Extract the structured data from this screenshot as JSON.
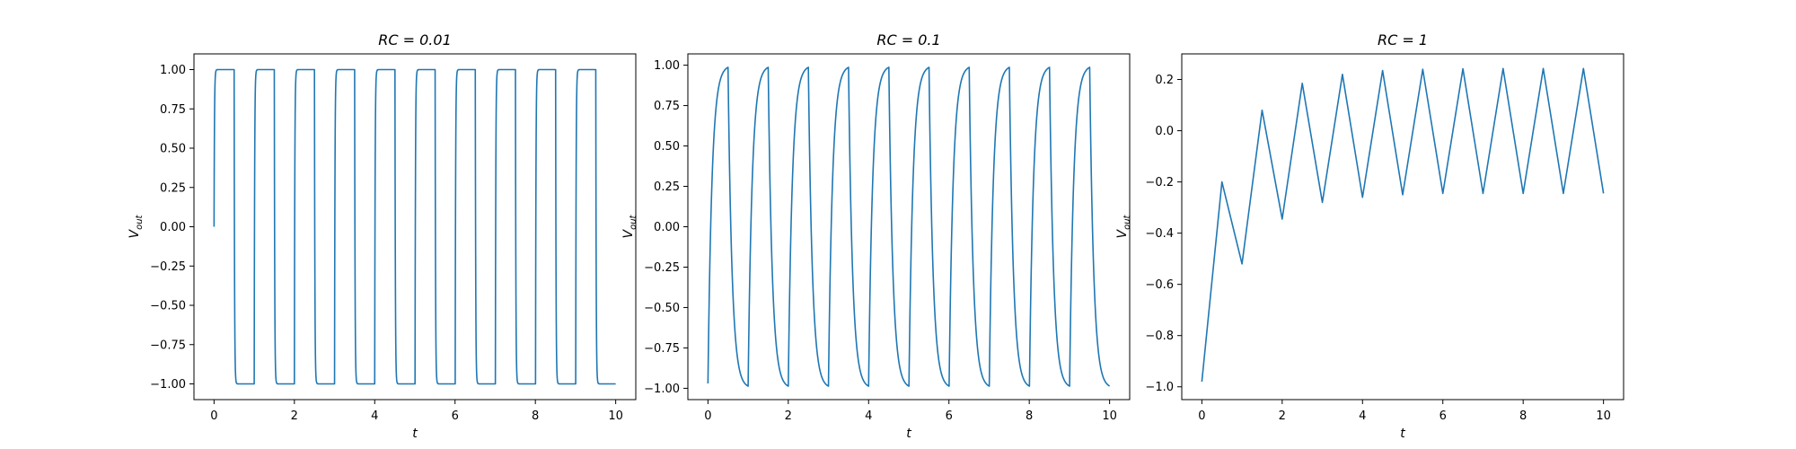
{
  "chart_data": [
    {
      "type": "line",
      "title": "RC = 0.01",
      "xlabel": "t",
      "ylabel": "V_out",
      "xlim": [
        -0.5,
        10.5
      ],
      "ylim": [
        -1.1,
        1.1
      ],
      "xticks": [
        0,
        2,
        4,
        6,
        8,
        10
      ],
      "xtick_labels": [
        "0",
        "2",
        "4",
        "6",
        "8",
        "10"
      ],
      "yticks": [
        -1.0,
        -0.75,
        -0.5,
        -0.25,
        0.0,
        0.25,
        0.5,
        0.75,
        1.0
      ],
      "ytick_labels": [
        "−1.00",
        "−0.75",
        "−0.50",
        "−0.25",
        "0.00",
        "0.25",
        "0.50",
        "0.75",
        "1.00"
      ],
      "grid": false,
      "series": [
        {
          "color": "#1f77b4",
          "model": "RC response to ±1 square wave, period 1, starting at 0",
          "rc": 0.01,
          "v0": 0.0,
          "x_range": [
            0,
            10
          ]
        }
      ]
    },
    {
      "type": "line",
      "title": "RC = 0.1",
      "xlabel": "t",
      "ylabel": "V_out",
      "xlim": [
        -0.5,
        10.5
      ],
      "ylim": [
        -1.07,
        1.07
      ],
      "xticks": [
        0,
        2,
        4,
        6,
        8,
        10
      ],
      "xtick_labels": [
        "0",
        "2",
        "4",
        "6",
        "8",
        "10"
      ],
      "yticks": [
        -1.0,
        -0.75,
        -0.5,
        -0.25,
        0.0,
        0.25,
        0.5,
        0.75,
        1.0
      ],
      "ytick_labels": [
        "−1.00",
        "−0.75",
        "−0.50",
        "−0.25",
        "0.00",
        "0.25",
        "0.50",
        "0.75",
        "1.00"
      ],
      "grid": false,
      "series": [
        {
          "color": "#1f77b4",
          "model": "RC response to ±1 square wave, period 1",
          "rc": 0.1,
          "v0": -0.97,
          "x_range": [
            0,
            10
          ]
        }
      ]
    },
    {
      "type": "line",
      "title": "RC = 1",
      "xlabel": "t",
      "ylabel": "V_out",
      "xlim": [
        -0.5,
        10.5
      ],
      "ylim": [
        -1.05,
        0.3
      ],
      "xticks": [
        0,
        2,
        4,
        6,
        8,
        10
      ],
      "xtick_labels": [
        "0",
        "2",
        "4",
        "6",
        "8",
        "10"
      ],
      "yticks": [
        -1.0,
        -0.8,
        -0.6,
        -0.4,
        -0.2,
        0.0,
        0.2
      ],
      "ytick_labels": [
        "−1.0",
        "−0.8",
        "−0.6",
        "−0.4",
        "−0.2",
        "0.0",
        "0.2"
      ],
      "grid": false,
      "series": [
        {
          "color": "#1f77b4",
          "type": "polyline",
          "x": [
            0,
            0.5,
            1,
            1.5,
            2,
            2.5,
            3,
            3.5,
            4,
            4.5,
            5,
            5.5,
            6,
            6.5,
            7,
            7.5,
            8,
            8.5,
            9,
            9.5,
            10
          ],
          "y": [
            -0.98,
            -0.2,
            -0.52,
            0.08,
            -0.345,
            0.185,
            -0.28,
            0.22,
            -0.26,
            0.235,
            -0.25,
            0.24,
            -0.245,
            0.242,
            -0.245,
            0.243,
            -0.245,
            0.243,
            -0.245,
            0.243,
            -0.245
          ]
        }
      ]
    }
  ]
}
